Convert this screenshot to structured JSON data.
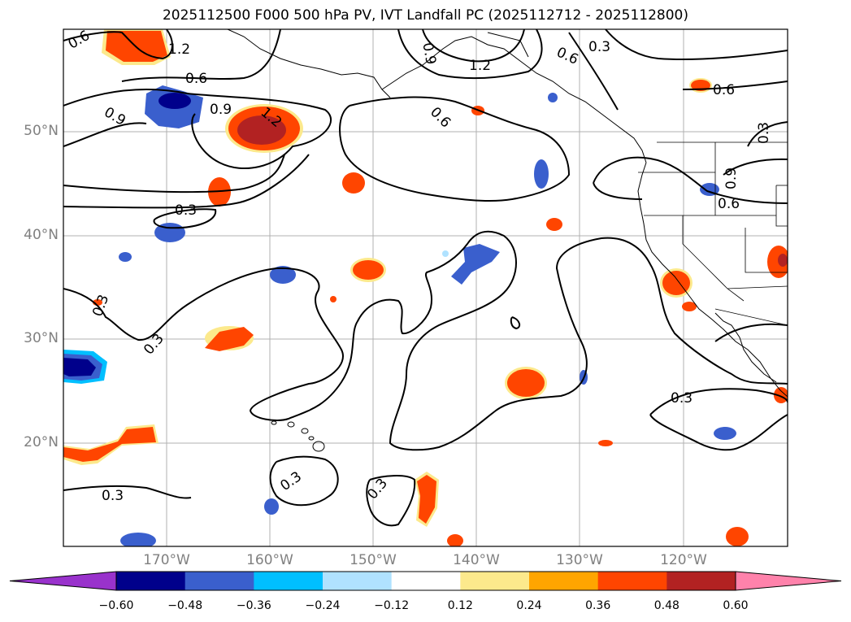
{
  "title": "2025112500 F000 500 hPa PV, IVT Landfall PC (2025112712 - 2025112800)",
  "lat_labels": [
    "50°N",
    "40°N",
    "30°N",
    "20°N"
  ],
  "lon_labels": [
    "170°W",
    "160°W",
    "150°W",
    "140°W",
    "130°W",
    "120°W"
  ],
  "contour_labels": [
    "0.6",
    "1.2",
    "0.9",
    "0.6",
    "0.9",
    "1.2",
    "0.9",
    "1.2",
    "0.6",
    "0.3",
    "0.6",
    "0.3",
    "0.9",
    "0.6",
    "0.6",
    "0.3",
    "0.3",
    "0.3",
    "0.3",
    "0.3",
    "0.3",
    "0.3"
  ],
  "colorbar": {
    "ticks": [
      "−0.60",
      "−0.48",
      "−0.36",
      "−0.24",
      "−0.12",
      "0.12",
      "0.24",
      "0.36",
      "0.48",
      "0.60"
    ],
    "colors": [
      "#9932cc",
      "#00008b",
      "#3a5fcd",
      "#00bfff",
      "#b0e2ff",
      "#ffffff",
      "#fce98c",
      "#ffa500",
      "#ff4500",
      "#b22222",
      "#ff82ab"
    ]
  }
}
